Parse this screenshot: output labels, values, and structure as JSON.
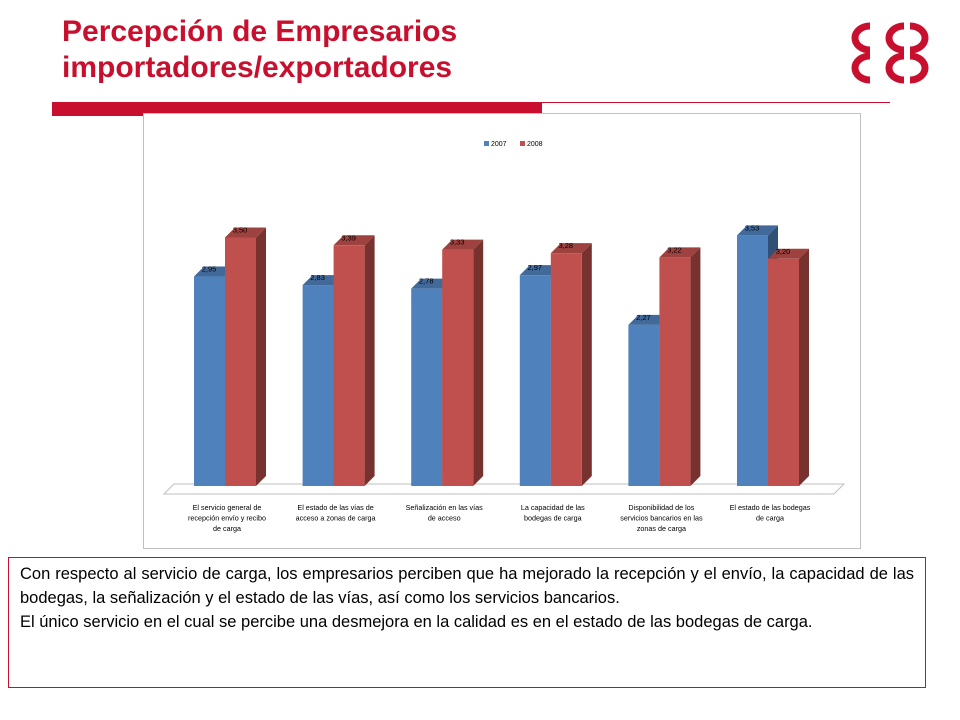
{
  "slide": {
    "title_line1": "Percepción de Empresarios",
    "title_line2": "importadores/exportadores",
    "accent_color": "#c8102e",
    "logo_icon": "interlocked-c-logo",
    "paragraphs": [
      "Con respecto al servicio de carga, los empresarios perciben que ha mejorado la recepción y el envío, la capacidad de las bodegas, la señalización y el estado de las vías, así como los servicios bancarios.",
      "El único servicio en el cual se percibe una desmejora en la calidad es en el estado de las bodegas de carga."
    ]
  },
  "chart_data": {
    "type": "bar",
    "three_d": true,
    "legend_position": "top",
    "grid": false,
    "categories": [
      [
        "El servicio general de",
        "recepción envío y recibo",
        "de carga"
      ],
      [
        "El estado de las vías de",
        "acceso a zonas de carga"
      ],
      [
        "Señalización en las vías",
        "de acceso"
      ],
      [
        "La capacidad de las",
        "bodegas de carga"
      ],
      [
        "Disponibilidad de los",
        "servicios bancarios en las",
        "zonas de carga"
      ],
      [
        "El estado de las bodegas",
        "de carga"
      ]
    ],
    "series": [
      {
        "name": "2007",
        "color": "#4f81bd",
        "values": [
          2.95,
          2.83,
          2.78,
          2.97,
          2.27,
          3.53
        ],
        "labels": [
          "2,95",
          "2,83",
          "2,78",
          "2,97",
          "2,27",
          "3,53"
        ]
      },
      {
        "name": "2008",
        "color": "#c0504d",
        "values": [
          3.5,
          3.39,
          3.33,
          3.28,
          3.22,
          3.2
        ],
        "labels": [
          "3,50",
          "3,39",
          "3,33",
          "3,28",
          "3,22",
          "3,20"
        ]
      }
    ],
    "ylim": [
      0,
      4
    ]
  }
}
